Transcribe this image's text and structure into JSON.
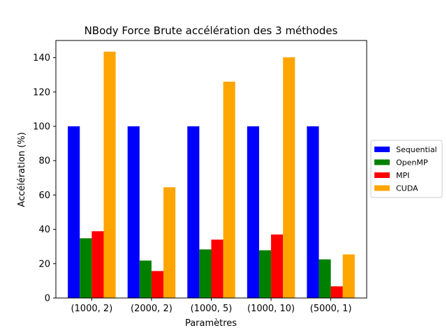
{
  "chart_data": {
    "type": "bar",
    "title": "NBody Force Brute accélération des 3 méthodes",
    "xlabel": "Paramètres",
    "ylabel": "Accélération (%)",
    "categories": [
      "(1000, 2)",
      "(2000, 2)",
      "(1000, 5)",
      "(1000, 10)",
      "(5000, 1)"
    ],
    "ylim": [
      0,
      150
    ],
    "yticks": [
      0,
      20,
      40,
      60,
      80,
      100,
      120,
      140
    ],
    "grid": false,
    "legend_position": "right",
    "series": [
      {
        "name": "Sequential",
        "color": "#0000ff",
        "values": [
          100,
          100,
          100,
          100,
          100
        ]
      },
      {
        "name": "OpenMP",
        "color": "#008000",
        "values": [
          34.8,
          21.8,
          28.3,
          27.8,
          22.5
        ]
      },
      {
        "name": "MPI",
        "color": "#ff0000",
        "values": [
          38.9,
          15.7,
          34.0,
          37.0,
          6.8
        ]
      },
      {
        "name": "CUDA",
        "color": "#ffa500",
        "values": [
          143.5,
          64.5,
          126.0,
          140.2,
          25.4
        ]
      }
    ]
  }
}
